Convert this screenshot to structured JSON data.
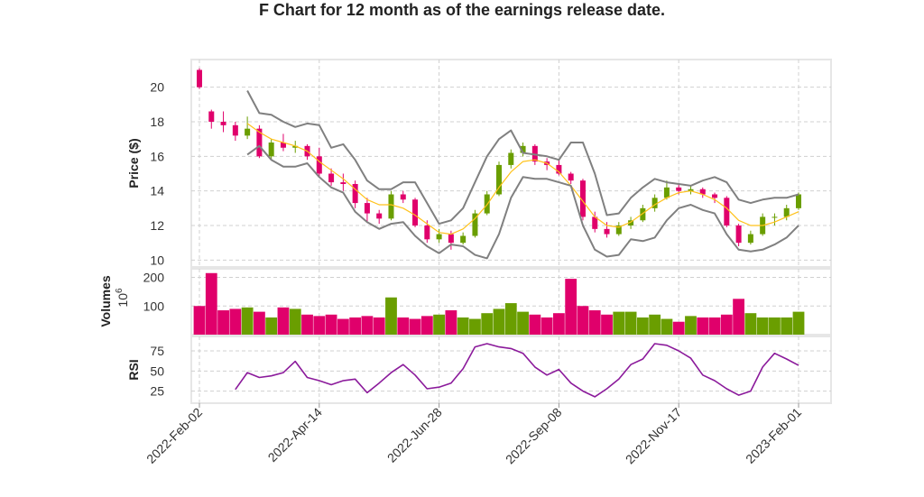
{
  "chart_data": {
    "type": "candlestick",
    "title": "F Chart for 12 month as of the earnings release date.",
    "x_tick_labels": [
      "2022-Feb-02",
      "2022-Apr-14",
      "2022-Jun-28",
      "2022-Sep-08",
      "2022-Nov-17",
      "2023-Feb-01"
    ],
    "x_tick_index": [
      0,
      10,
      20,
      30,
      40,
      50
    ],
    "grid": true,
    "colors": {
      "up": "#6a9e00",
      "down": "#e0006b",
      "sma": "#ffc21a",
      "bands": "#808080",
      "rsi": "#8b1a9b",
      "grid": "#d0d0d0",
      "frame": "#e6e6e6"
    },
    "price_panel": {
      "ylabel": "Price ($)",
      "ylim": [
        9.6,
        21.6
      ],
      "yticks": [
        10,
        12,
        14,
        16,
        18,
        20
      ],
      "ohlc": [
        [
          21.0,
          21.1,
          19.9,
          20.0
        ],
        [
          18.6,
          18.7,
          17.6,
          18.0
        ],
        [
          18.0,
          18.6,
          17.4,
          17.8
        ],
        [
          17.8,
          18.0,
          16.9,
          17.2
        ],
        [
          17.2,
          18.3,
          17.0,
          17.6
        ],
        [
          17.6,
          17.8,
          15.9,
          16.0
        ],
        [
          16.0,
          17.0,
          15.8,
          16.8
        ],
        [
          16.8,
          17.3,
          16.3,
          16.5
        ],
        [
          16.5,
          16.9,
          16.2,
          16.6
        ],
        [
          16.6,
          16.7,
          15.8,
          16.0
        ],
        [
          16.0,
          16.5,
          14.8,
          15.0
        ],
        [
          15.0,
          15.3,
          14.3,
          14.5
        ],
        [
          14.5,
          15.0,
          14.0,
          14.4
        ],
        [
          14.4,
          14.6,
          13.0,
          13.3
        ],
        [
          13.3,
          13.6,
          12.2,
          12.7
        ],
        [
          12.7,
          12.9,
          12.1,
          12.4
        ],
        [
          12.4,
          14.0,
          12.3,
          13.8
        ],
        [
          13.8,
          14.0,
          13.3,
          13.5
        ],
        [
          13.5,
          13.6,
          11.9,
          12.0
        ],
        [
          12.0,
          12.3,
          11.0,
          11.2
        ],
        [
          11.2,
          11.8,
          11.0,
          11.5
        ],
        [
          11.5,
          11.7,
          10.6,
          11.0
        ],
        [
          11.0,
          11.6,
          10.9,
          11.4
        ],
        [
          11.4,
          12.9,
          11.3,
          12.7
        ],
        [
          12.7,
          14.0,
          12.6,
          13.8
        ],
        [
          13.8,
          15.7,
          13.7,
          15.5
        ],
        [
          15.5,
          16.4,
          15.3,
          16.2
        ],
        [
          16.2,
          16.8,
          16.0,
          16.6
        ],
        [
          16.6,
          16.7,
          15.5,
          15.7
        ],
        [
          15.7,
          15.9,
          15.2,
          15.5
        ],
        [
          15.5,
          15.8,
          14.9,
          15.0
        ],
        [
          15.0,
          15.1,
          14.4,
          14.6
        ],
        [
          14.6,
          14.7,
          12.3,
          12.5
        ],
        [
          12.5,
          12.8,
          11.6,
          11.8
        ],
        [
          11.8,
          12.2,
          11.3,
          11.5
        ],
        [
          11.5,
          12.2,
          11.4,
          12.0
        ],
        [
          12.0,
          12.5,
          11.8,
          12.3
        ],
        [
          12.3,
          13.2,
          12.2,
          13.0
        ],
        [
          13.0,
          13.8,
          12.8,
          13.6
        ],
        [
          13.6,
          14.6,
          13.5,
          14.2
        ],
        [
          14.2,
          14.4,
          13.8,
          14.0
        ],
        [
          14.0,
          14.3,
          13.8,
          14.1
        ],
        [
          14.1,
          14.2,
          13.6,
          13.8
        ],
        [
          13.8,
          13.9,
          13.3,
          13.6
        ],
        [
          13.6,
          13.7,
          11.9,
          12.0
        ],
        [
          12.0,
          12.1,
          10.8,
          11.0
        ],
        [
          11.0,
          11.7,
          10.9,
          11.5
        ],
        [
          11.5,
          12.7,
          11.4,
          12.5
        ],
        [
          12.5,
          12.7,
          12.0,
          12.5
        ],
        [
          12.5,
          13.2,
          12.3,
          13.0
        ],
        [
          13.0,
          13.9,
          12.9,
          13.8
        ]
      ],
      "sma": [
        17.9,
        17.4,
        17.0,
        16.8,
        16.6,
        16.3,
        15.7,
        15.2,
        14.7,
        14.1,
        13.5,
        13.2,
        13.2,
        13.0,
        12.6,
        12.1,
        11.6,
        11.5,
        11.8,
        12.4,
        13.2,
        14.2,
        15.1,
        15.7,
        15.8,
        15.6,
        15.1,
        14.3,
        13.4,
        12.5,
        12.0,
        11.9,
        12.2,
        12.7,
        13.2,
        13.6,
        13.9,
        14.0,
        13.8,
        13.5,
        13.0,
        12.3,
        12.0,
        12.0,
        12.2,
        12.5,
        12.8
      ],
      "upper_band": [
        19.8,
        18.5,
        18.4,
        18.0,
        17.7,
        17.9,
        17.8,
        16.5,
        16.7,
        15.8,
        14.6,
        14.1,
        14.1,
        14.5,
        14.5,
        13.3,
        12.1,
        12.3,
        13.0,
        14.5,
        16.0,
        17.0,
        17.5,
        16.2,
        16.1,
        16.0,
        15.8,
        16.8,
        16.8,
        15.0,
        12.6,
        12.7,
        13.6,
        14.2,
        14.7,
        14.5,
        14.4,
        14.3,
        14.6,
        14.8,
        14.5,
        13.5,
        13.3,
        13.5,
        13.6,
        13.6,
        13.8
      ],
      "lower_band": [
        16.1,
        16.6,
        15.8,
        15.4,
        15.4,
        15.6,
        14.8,
        14.2,
        13.9,
        12.8,
        12.2,
        11.8,
        12.1,
        12.2,
        11.4,
        10.8,
        10.4,
        10.9,
        10.8,
        10.3,
        10.1,
        11.5,
        13.6,
        14.8,
        14.7,
        14.7,
        14.5,
        14.3,
        12.0,
        10.6,
        10.2,
        10.3,
        11.2,
        11.1,
        11.3,
        12.3,
        13.0,
        13.2,
        12.9,
        12.7,
        11.5,
        10.6,
        10.5,
        10.6,
        10.9,
        11.3,
        12.0
      ]
    },
    "volume_panel": {
      "ylabel": "Volumes",
      "unit_label": "10",
      "unit_exp": "6",
      "ylim": [
        0,
        230
      ],
      "yticks": [
        100,
        200
      ],
      "values": [
        100,
        215,
        85,
        90,
        95,
        80,
        60,
        95,
        90,
        70,
        65,
        70,
        55,
        60,
        65,
        60,
        130,
        60,
        55,
        65,
        70,
        85,
        60,
        55,
        75,
        90,
        110,
        80,
        70,
        60,
        75,
        195,
        100,
        85,
        70,
        80,
        80,
        60,
        70,
        55,
        45,
        65,
        60,
        60,
        70,
        125,
        75,
        60,
        60,
        60,
        80
      ]
    },
    "rsi_panel": {
      "ylabel": "RSI",
      "ylim": [
        10,
        93
      ],
      "yticks": [
        25,
        50,
        75
      ],
      "values": [
        27,
        48,
        42,
        44,
        48,
        62,
        42,
        38,
        33,
        38,
        40,
        23,
        35,
        48,
        58,
        45,
        28,
        30,
        35,
        53,
        80,
        84,
        80,
        78,
        72,
        55,
        45,
        52,
        35,
        25,
        18,
        28,
        40,
        58,
        65,
        84,
        82,
        75,
        66,
        45,
        38,
        28,
        20,
        25,
        55,
        72,
        65,
        57
      ]
    }
  }
}
